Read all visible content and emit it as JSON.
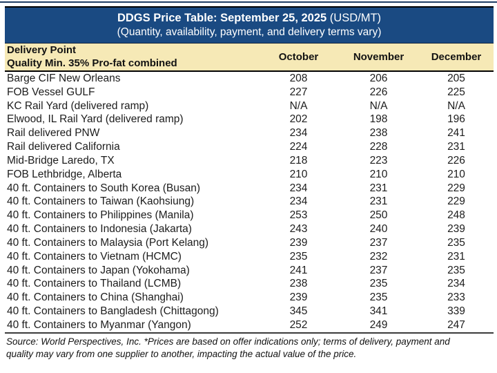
{
  "page": {
    "background": "#ffffff",
    "top_edge_color": "#1d3c62"
  },
  "header": {
    "title_bold": "DDGS Price Table: September 25, 2025",
    "title_unit": " (USD/MT)",
    "subtitle": "(Quantity, availability, payment, and delivery terms vary)",
    "background": "#1a4a82",
    "text_color": "#ffffff"
  },
  "columns": {
    "label_line1": "Delivery Point",
    "label_line2": "Quality Min. 35% Pro-fat combined",
    "months": [
      "October",
      "November",
      "December"
    ],
    "background": "#f6e9b6"
  },
  "table": {
    "rows": [
      {
        "label": "Barge CIF New Orleans",
        "october": "208",
        "november": "206",
        "december": "205"
      },
      {
        "label": "FOB Vessel GULF",
        "october": "227",
        "november": "226",
        "december": "225"
      },
      {
        "label": "KC Rail Yard (delivered ramp)",
        "october": "N/A",
        "november": "N/A",
        "december": "N/A"
      },
      {
        "label": "Elwood, IL Rail Yard (delivered ramp)",
        "october": "202",
        "november": "198",
        "december": "196"
      },
      {
        "label": "Rail delivered PNW",
        "october": "234",
        "november": "238",
        "december": "241"
      },
      {
        "label": "Rail delivered California",
        "october": "224",
        "november": "228",
        "december": "231"
      },
      {
        "label": "Mid-Bridge Laredo, TX",
        "october": "218",
        "november": "223",
        "december": "226"
      },
      {
        "label": "FOB Lethbridge, Alberta",
        "october": "210",
        "november": "210",
        "december": "210"
      },
      {
        "label": "40 ft. Containers to South Korea (Busan)",
        "october": "234",
        "november": "231",
        "december": "229"
      },
      {
        "label": "40 ft. Containers to Taiwan (Kaohsiung)",
        "october": "234",
        "november": "231",
        "december": "229"
      },
      {
        "label": "40 ft. Containers to Philippines (Manila)",
        "october": "253",
        "november": "250",
        "december": "248"
      },
      {
        "label": "40 ft. Containers to Indonesia (Jakarta)",
        "october": "243",
        "november": "240",
        "december": "239"
      },
      {
        "label": "40 ft. Containers to Malaysia (Port Kelang)",
        "october": "239",
        "november": "237",
        "december": "235"
      },
      {
        "label": "40 ft. Containers to Vietnam (HCMC)",
        "october": "235",
        "november": "232",
        "december": "231"
      },
      {
        "label": "40 ft. Containers to Japan (Yokohama)",
        "october": "241",
        "november": "237",
        "december": "235"
      },
      {
        "label": "40 ft. Containers to Thailand (LCMB)",
        "october": "238",
        "november": "235",
        "december": "234"
      },
      {
        "label": "40 ft. Containers to China (Shanghai)",
        "october": "239",
        "november": "235",
        "december": "233"
      },
      {
        "label": "40 ft. Containers to Bangladesh (Chittagong)",
        "october": "345",
        "november": "341",
        "december": "339"
      },
      {
        "label": "40 ft. Containers to Myanmar (Yangon)",
        "october": "252",
        "november": "249",
        "december": "247"
      }
    ]
  },
  "footer": {
    "line1": "Source: World Perspectives, Inc. *Prices are based on offer indications only; terms of delivery, payment and",
    "line2": "quality may vary from one supplier to another, impacting the actual value of the price."
  }
}
